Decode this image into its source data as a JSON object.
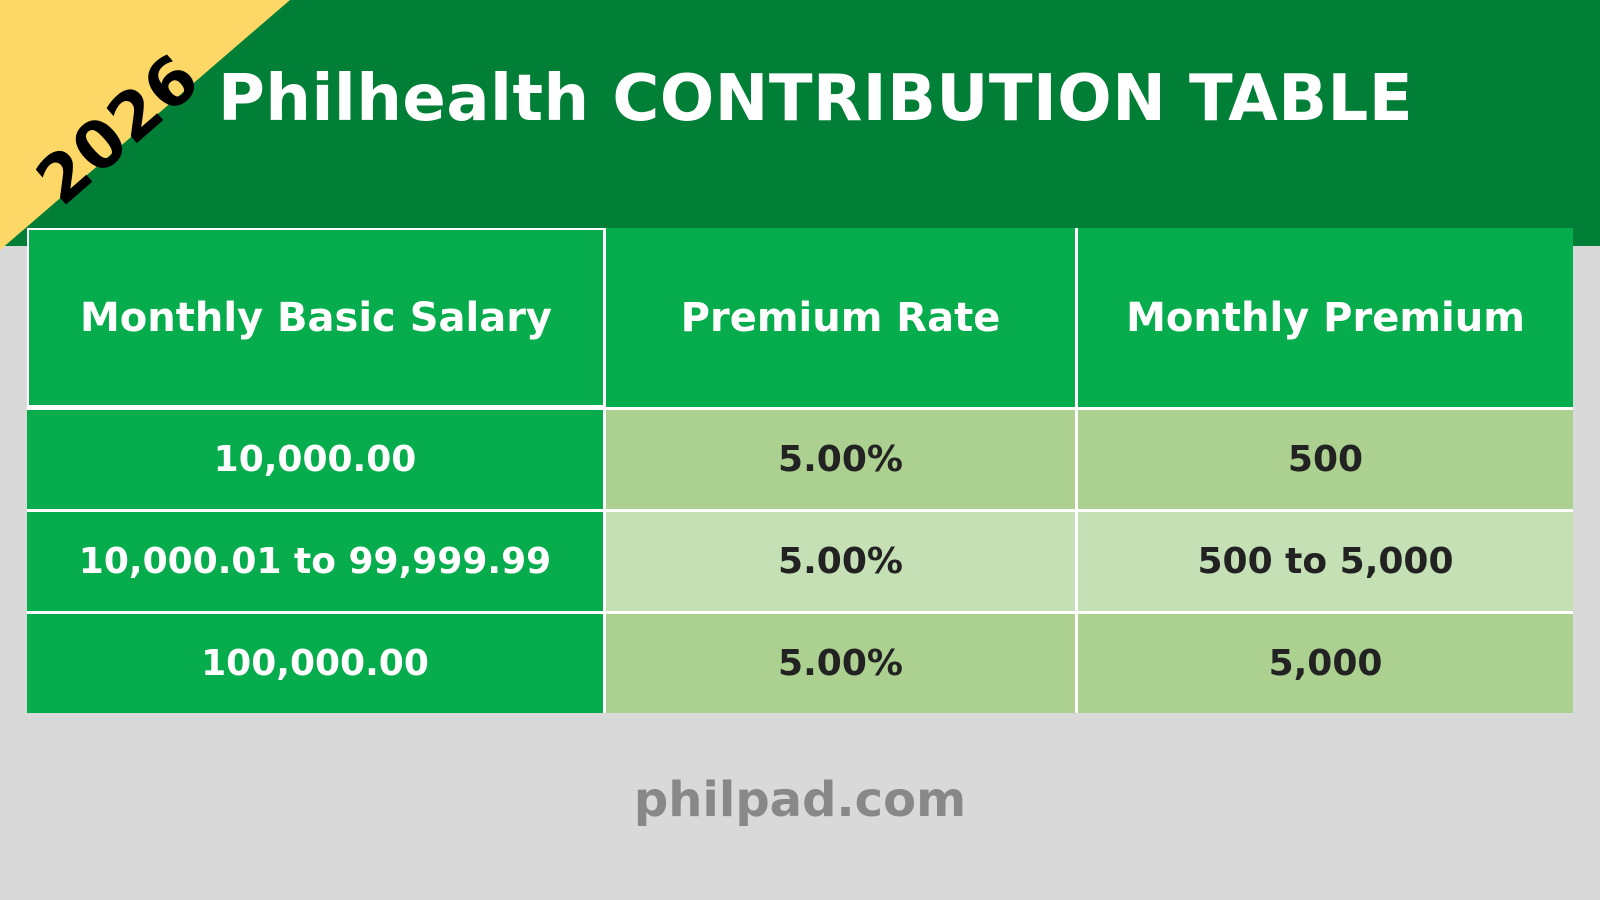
{
  "banner": {
    "year": "2026",
    "title": "Philhealth CONTRIBUTION TABLE"
  },
  "table": {
    "headers": [
      "Monthly Basic Salary",
      "Premium Rate",
      "Monthly Premium"
    ],
    "rows": [
      [
        "10,000.00",
        "5.00%",
        "500"
      ],
      [
        "10,000.01 to 99,999.99",
        "5.00%",
        "500 to 5,000"
      ],
      [
        "100,000.00",
        "5.00%",
        "5,000"
      ]
    ]
  },
  "footer": {
    "site": "philpad.com"
  },
  "colors": {
    "header_green": "#027f36",
    "table_green": "#07ad4d",
    "row_dark": "#abd08f",
    "row_light": "#c5e0b4",
    "corner_yellow": "#fdd866",
    "background_gray": "#d9d9d9"
  }
}
